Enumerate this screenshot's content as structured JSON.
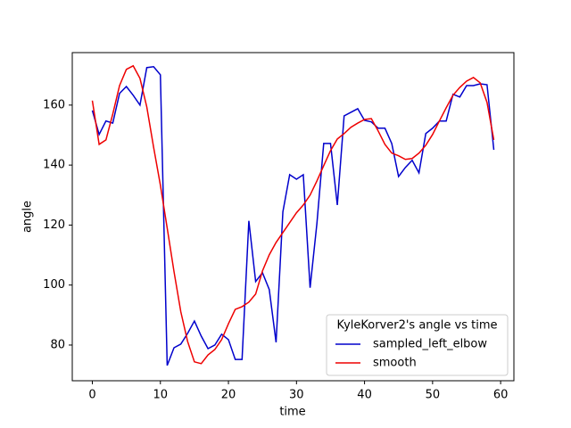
{
  "chart_data": {
    "type": "line",
    "x_label": "time",
    "y_label": "angle",
    "xlim": [
      -2.95,
      61.95
    ],
    "ylim": [
      68.1,
      177.5
    ],
    "xticks": [
      0,
      10,
      20,
      30,
      40,
      50,
      60
    ],
    "yticks": [
      80,
      100,
      120,
      140,
      160
    ],
    "grid": false,
    "legend_title": "KyleKorver2's angle vs time",
    "legend_position": "lower right",
    "x": [
      0,
      1,
      2,
      3,
      4,
      5,
      6,
      7,
      8,
      9,
      10,
      11,
      12,
      13,
      14,
      15,
      16,
      17,
      18,
      19,
      20,
      21,
      22,
      23,
      24,
      25,
      26,
      27,
      28,
      29,
      30,
      31,
      32,
      33,
      34,
      35,
      36,
      37,
      38,
      39,
      40,
      41,
      42,
      43,
      44,
      45,
      46,
      47,
      48,
      49,
      50,
      51,
      52,
      53,
      54,
      55,
      56,
      57,
      58,
      59
    ],
    "series": [
      {
        "name": "sampled_left_elbow",
        "color": "#0000cc",
        "values": [
          158.2,
          150.2,
          154.7,
          154,
          163.9,
          166.2,
          163.3,
          160,
          172.5,
          172.8,
          170.1,
          73.2,
          79.1,
          80.3,
          83.9,
          88,
          83,
          78.8,
          80,
          83.6,
          81.8,
          75.2,
          75.2,
          121.4,
          101.2,
          104.1,
          98.5,
          80.9,
          124.4,
          136.8,
          135.3,
          136.8,
          99.1,
          120.5,
          147.2,
          147.2,
          126.7,
          156.4,
          157.6,
          158.8,
          154.9,
          154.4,
          152.3,
          152.3,
          147.2,
          136.2,
          139.2,
          141.6,
          137.4,
          150.5,
          152.3,
          154.7,
          154.7,
          163.6,
          162.7,
          166.5,
          166.5,
          167.1,
          166.8,
          145.1
        ]
      },
      {
        "name": "smooth",
        "color": "#ee0000",
        "values": [
          161.5,
          146.9,
          148.4,
          157,
          166.5,
          171.9,
          173.1,
          168.9,
          159.4,
          146,
          133.3,
          119,
          104.5,
          91.1,
          81.2,
          74.4,
          73.8,
          76.7,
          78.5,
          81.8,
          87.1,
          91.9,
          92.8,
          94.3,
          97,
          104.7,
          110.1,
          114.2,
          117.5,
          120.8,
          124.1,
          126.7,
          130,
          134.7,
          139.8,
          144.8,
          148.7,
          150.5,
          152.6,
          154,
          155.2,
          155.5,
          151.4,
          146.9,
          144,
          143.1,
          141.9,
          142.2,
          144,
          146.6,
          150.2,
          154.7,
          159.1,
          163.3,
          165.9,
          168,
          169.2,
          167.4,
          160.9,
          148.4
        ]
      }
    ]
  }
}
